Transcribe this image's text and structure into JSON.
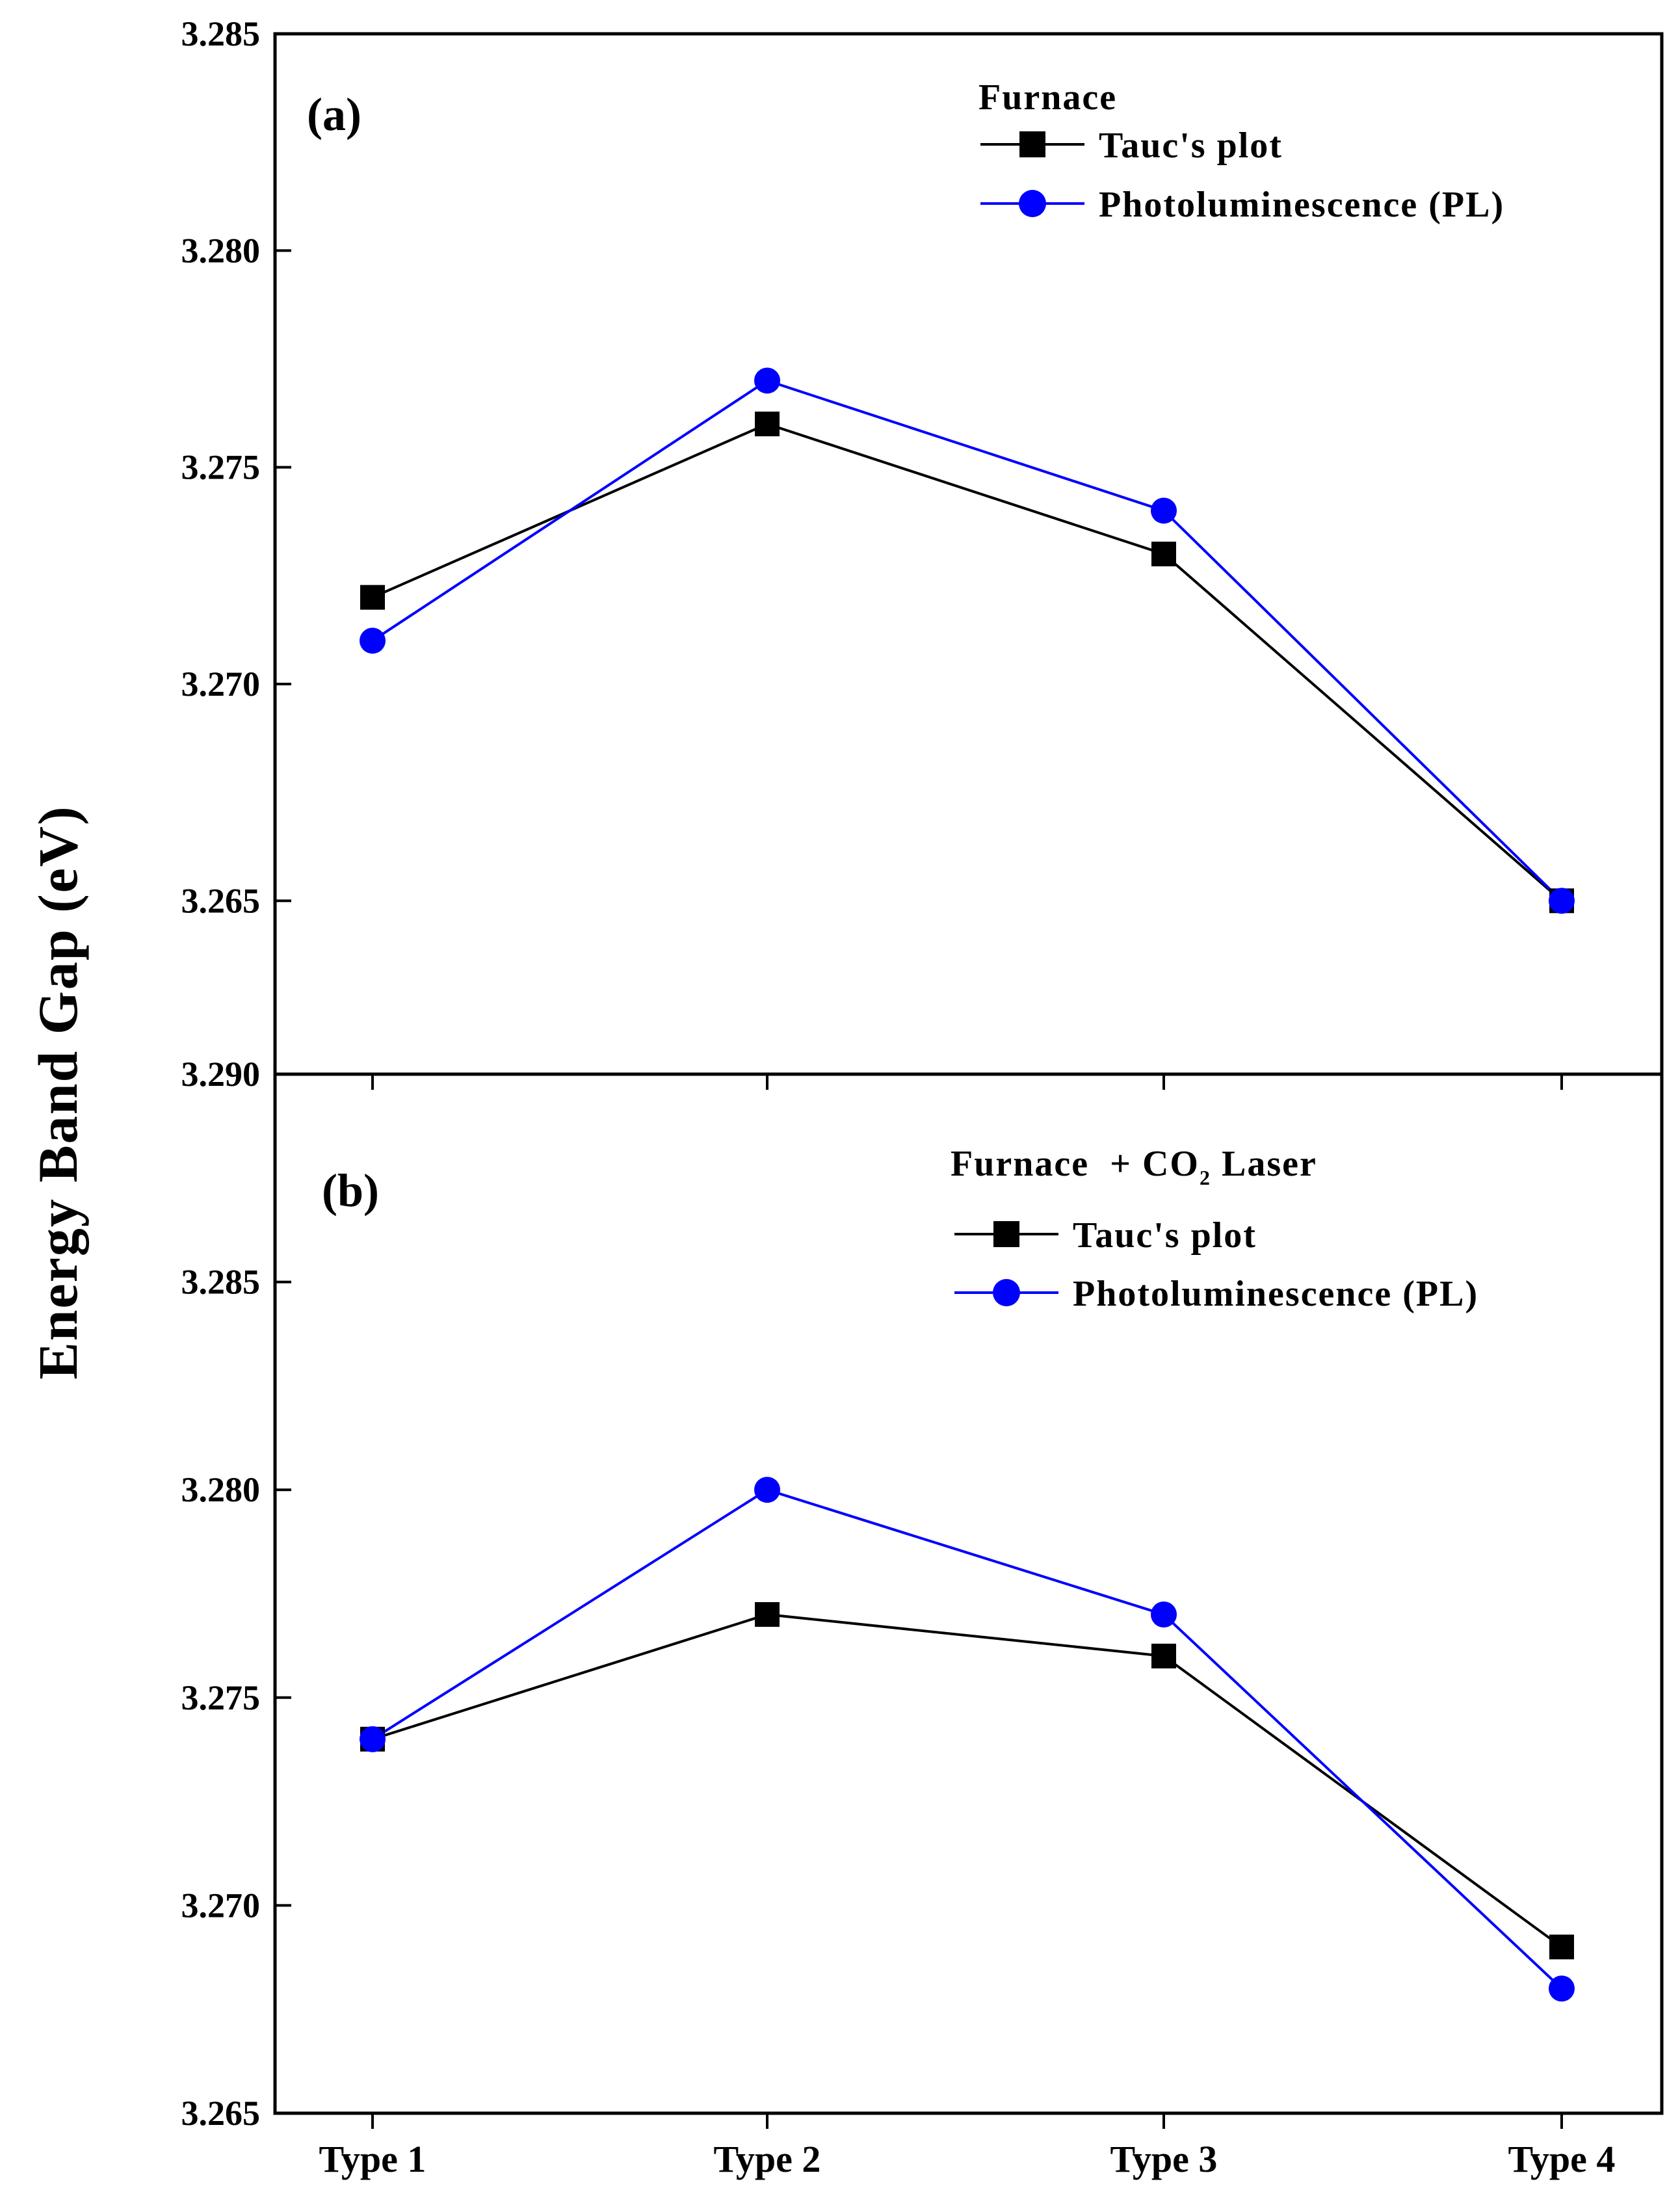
{
  "figure": {
    "ylabel": "Energy Band Gap (eV)"
  },
  "chart_data": [
    {
      "type": "line",
      "panel_label": "(a)",
      "legend_title": "Furnace",
      "legend_title_suffix": "",
      "legend_title_sub": "",
      "legend_title_end": "",
      "categories": [
        "Type 1",
        "Type 2",
        "Type 3",
        "Type 4"
      ],
      "series": [
        {
          "name": "Tauc's plot",
          "marker": "square",
          "color": "#000000",
          "values": [
            3.272,
            3.276,
            3.273,
            3.265
          ]
        },
        {
          "name": "Photoluminescence (PL)",
          "marker": "circle",
          "color": "#0000ff",
          "values": [
            3.271,
            3.277,
            3.274,
            3.265
          ]
        }
      ],
      "ylim": [
        3.261,
        3.285
      ],
      "y_ticks": [
        3.285,
        3.28,
        3.275,
        3.27,
        3.265
      ],
      "y_tick_labels": [
        "3.285",
        "3.280",
        "3.275",
        "3.270",
        "3.265"
      ],
      "bottom_tick_label": "3.290",
      "legend_position": "top-right"
    },
    {
      "type": "line",
      "panel_label": "(b)",
      "legend_title": "Furnace  + CO",
      "legend_title_sub": "2",
      "legend_title_end": " Laser",
      "categories": [
        "Type 1",
        "Type 2",
        "Type 3",
        "Type 4"
      ],
      "series": [
        {
          "name": "Tauc's plot",
          "marker": "square",
          "color": "#000000",
          "values": [
            3.274,
            3.277,
            3.276,
            3.269
          ]
        },
        {
          "name": "Photoluminescence (PL)",
          "marker": "circle",
          "color": "#0000ff",
          "values": [
            3.274,
            3.28,
            3.277,
            3.268
          ]
        }
      ],
      "ylim": [
        3.265,
        3.29
      ],
      "y_ticks": [
        3.285,
        3.28,
        3.275,
        3.27,
        3.265
      ],
      "y_tick_labels": [
        "3.285",
        "3.280",
        "3.275",
        "3.270",
        "3.265"
      ],
      "legend_position": "top-right"
    }
  ],
  "colors": {
    "tauc": "#000000",
    "pl": "#0000ff",
    "axis": "#000000"
  }
}
